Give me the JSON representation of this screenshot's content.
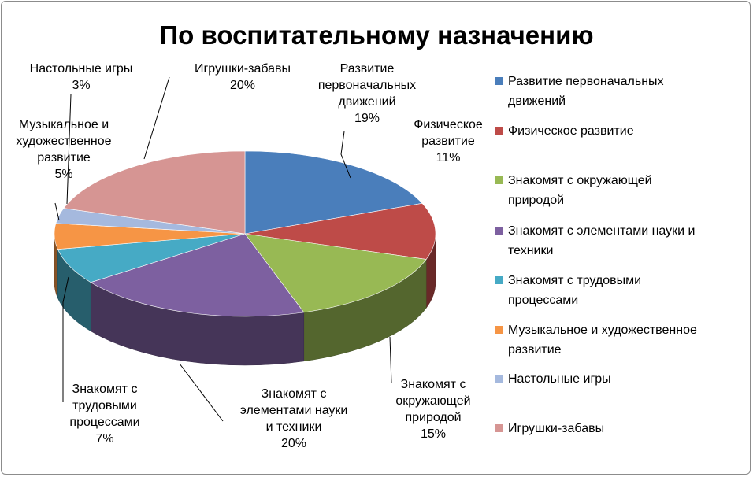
{
  "chart_data": {
    "type": "pie",
    "title": "По воспитательному назначению",
    "legend_position": "right",
    "slices": [
      {
        "name": "Развитие первоначальных движений",
        "value": 19,
        "label": "19%",
        "color": "#4a7ebb",
        "legend_lines": [
          "Развитие первоначальных",
          "движений"
        ],
        "label_lines": [
          "Развитие",
          "первоначальных",
          "движений",
          "19%"
        ]
      },
      {
        "name": "Физическое развитие",
        "value": 11,
        "label": "11%",
        "color": "#be4b48",
        "legend_lines": [
          "Физическое развитие"
        ],
        "label_lines": [
          "Физическое",
          "развитие",
          "11%"
        ]
      },
      {
        "name": "Знакомят с окружающей природой",
        "value": 15,
        "label": "15%",
        "color": "#98b954",
        "legend_lines": [
          "Знакомят с окружающей",
          "природой"
        ],
        "label_lines": [
          "Знакомят с",
          "окружающей",
          "природой",
          "15%"
        ]
      },
      {
        "name": "Знакомят с элементами науки и техники",
        "value": 20,
        "label": "20%",
        "color": "#7d60a0",
        "legend_lines": [
          "Знакомят с элементами науки и",
          "техники"
        ],
        "label_lines": [
          "Знакомят с",
          "элементами науки",
          "и техники",
          "20%"
        ]
      },
      {
        "name": "Знакомят с трудовыми процессами",
        "value": 7,
        "label": "7%",
        "color": "#46aac5",
        "legend_lines": [
          "Знакомят с трудовыми",
          "процессами"
        ],
        "label_lines": [
          "Знакомят с",
          "трудовыми",
          "процессами",
          "7%"
        ]
      },
      {
        "name": "Музыкальное и художественное развитие",
        "value": 5,
        "label": "5%",
        "color": "#f69545",
        "legend_lines": [
          "Музыкальное и художественное",
          "развитие"
        ],
        "label_lines": [
          "Музыкальное и",
          "художественное",
          "развитие",
          "5%"
        ]
      },
      {
        "name": "Настольные игры",
        "value": 3,
        "label": "3%",
        "color": "#a5b9de",
        "legend_lines": [
          "Настольные игры"
        ],
        "label_lines": [
          "Настольные игры",
          "3%"
        ]
      },
      {
        "name": "Игрушки-забавы",
        "value": 20,
        "label": "20%",
        "color": "#d69593",
        "legend_lines": [
          "Игрушки-забавы"
        ],
        "label_lines": [
          "Игрушки-забавы",
          "20%"
        ]
      }
    ]
  }
}
